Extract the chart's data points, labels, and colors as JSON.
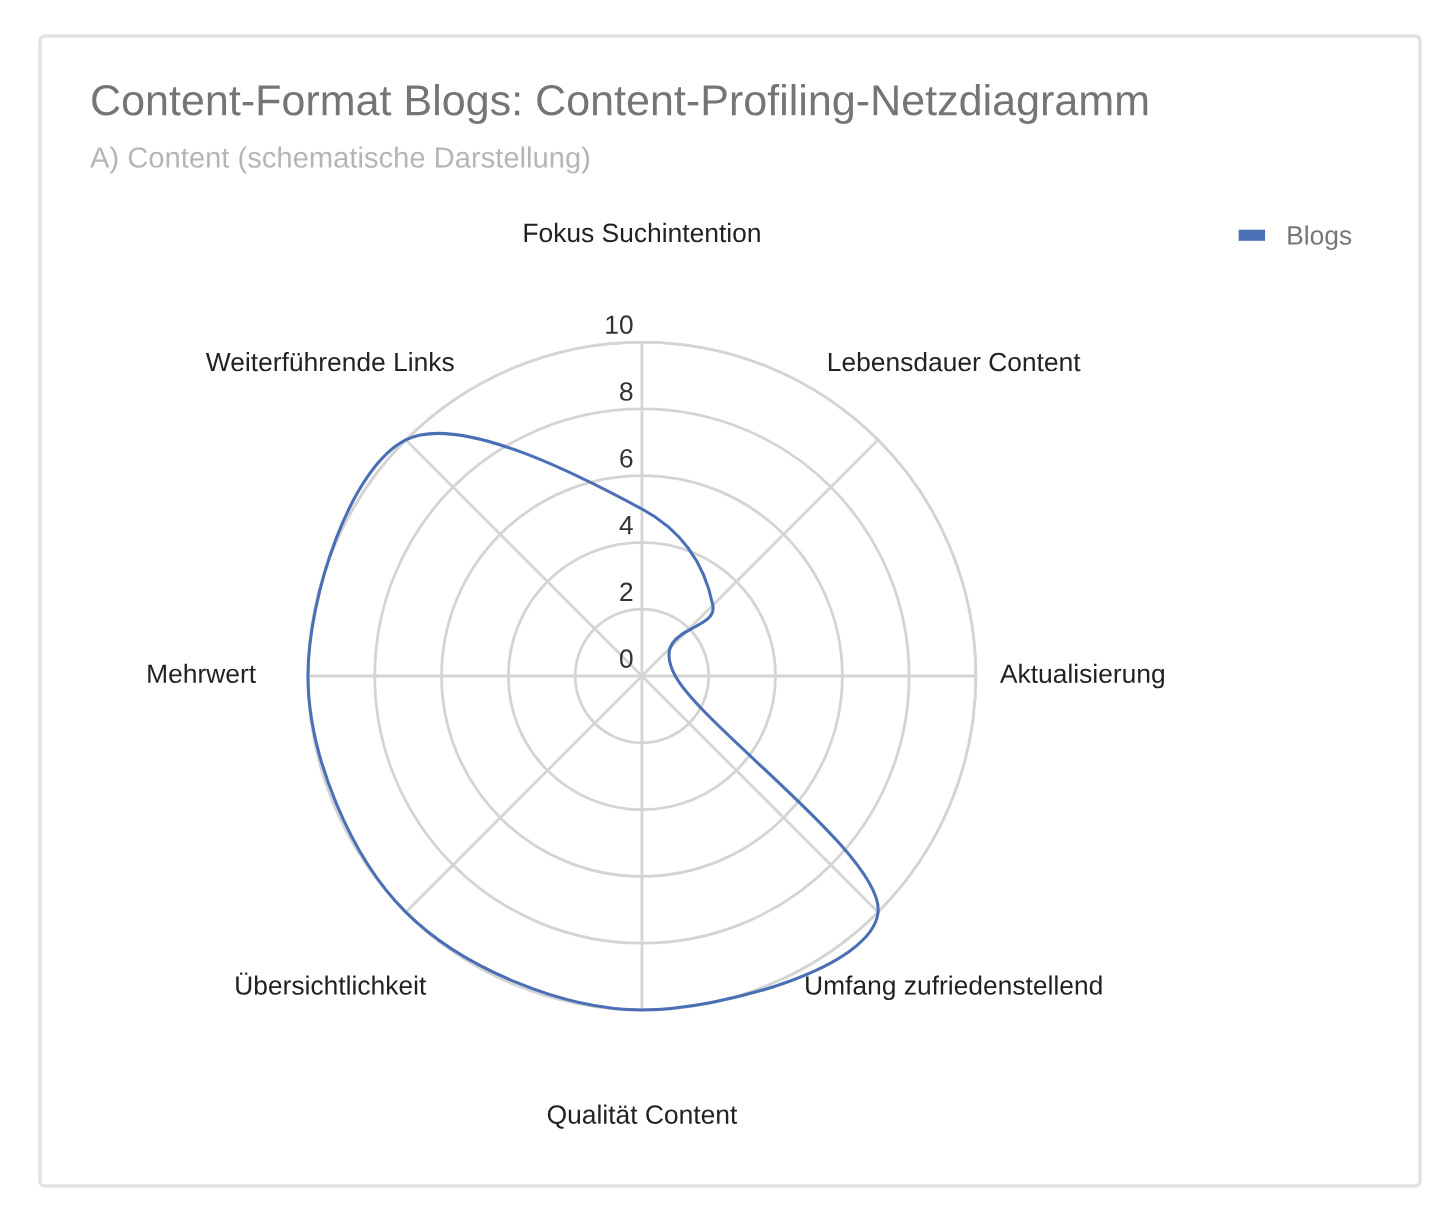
{
  "chart_data": {
    "type": "radar",
    "title": "Content-Format Blogs: Content-Profiling-Netzdiagramm",
    "subtitle": "A) Content (schematische Darstellung)",
    "categories": [
      "Fokus Suchintention",
      "Lebensdauer Content",
      "Aktualisierung",
      "Umfang zufriedenstellend",
      "Qualität Content",
      "Übersichtlichkeit",
      "Mehrwert",
      "Weiterführende Links"
    ],
    "series": [
      {
        "name": "Blogs",
        "color": "#4a6fb5",
        "values": [
          5,
          3,
          1,
          10,
          10,
          10,
          10,
          10
        ]
      }
    ],
    "ylim": [
      0,
      10
    ],
    "yticks": [
      0,
      2,
      4,
      6,
      8,
      10
    ],
    "grid": true,
    "legend": "top right"
  }
}
